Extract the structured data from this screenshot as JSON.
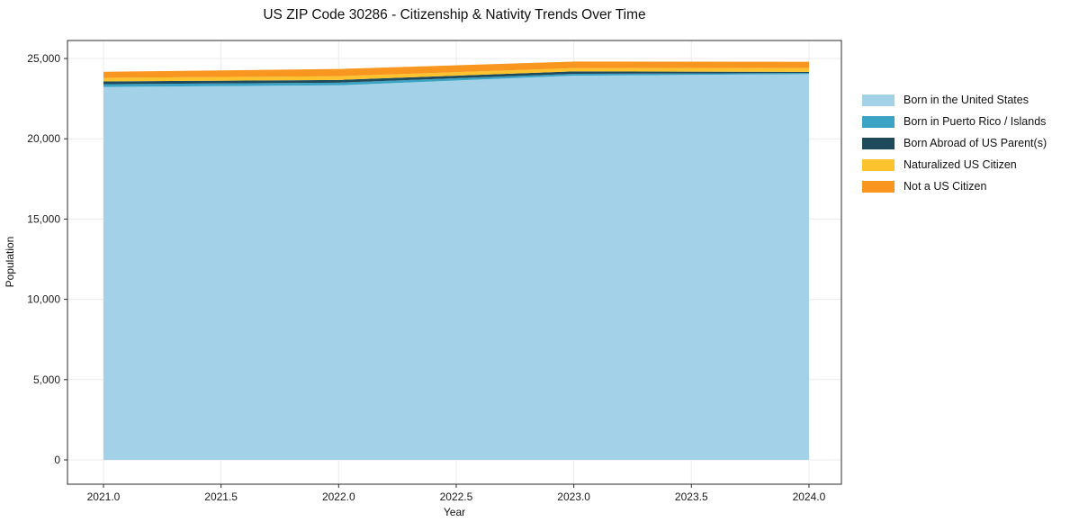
{
  "title": "US ZIP Code 30286 - Citizenship & Nativity Trends Over Time",
  "chart_data": {
    "type": "area",
    "stacked": true,
    "title": "US ZIP Code 30286 - Citizenship & Nativity Trends Over Time",
    "xlabel": "Year",
    "ylabel": "Population",
    "x": [
      2021,
      2022,
      2023,
      2024
    ],
    "series": [
      {
        "name": "Born in the United States",
        "color": "#A3D1E8",
        "values": [
          23230,
          23330,
          23930,
          24030
        ]
      },
      {
        "name": "Born in Puerto Rico / Islands",
        "color": "#3BA3C4",
        "values": [
          170,
          165,
          115,
          65
        ]
      },
      {
        "name": "Born Abroad of US Parent(s)",
        "color": "#1F4A5C",
        "values": [
          170,
          170,
          150,
          70
        ]
      },
      {
        "name": "Naturalized US Citizen",
        "color": "#FDC32F",
        "values": [
          225,
          230,
          205,
          240
        ]
      },
      {
        "name": "Not a US Citizen",
        "color": "#F8961F",
        "values": [
          380,
          450,
          410,
          390
        ]
      }
    ],
    "totals": [
      24175,
      24345,
      24810,
      24795
    ],
    "xlim": [
      2020.847,
      2024.138
    ],
    "ylim": [
      -1513,
      26121
    ],
    "xticks": {
      "values": [
        2021.0,
        2021.5,
        2022.0,
        2022.5,
        2023.0,
        2023.5,
        2024.0
      ],
      "labels": [
        "2021.0",
        "2021.5",
        "2022.0",
        "2022.5",
        "2023.0",
        "2023.5",
        "2024.0"
      ]
    },
    "yticks": {
      "values": [
        0,
        5000,
        10000,
        15000,
        20000,
        25000
      ],
      "labels": [
        "0",
        "5,000",
        "10,000",
        "15,000",
        "20,000",
        "25,000"
      ]
    },
    "grid": true,
    "grid_color": "#ebebeb",
    "spine_color": "#2b2b2b",
    "legend_position": "right"
  }
}
